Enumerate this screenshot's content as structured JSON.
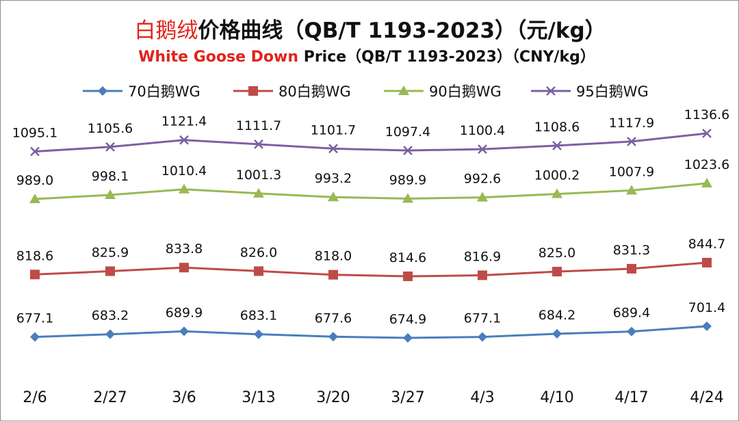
{
  "chart_data": {
    "type": "line",
    "title": {
      "cn_red": "白鹅绒",
      "cn_rest": "价格曲线（QB/T 1193-2023）（元/kg）",
      "en_red": "White Goose Down",
      "en_rest": " Price（QB/T 1193-2023）（CNY/kg）"
    },
    "categories": [
      "2/6",
      "2/27",
      "3/6",
      "3/13",
      "3/20",
      "3/27",
      "4/3",
      "4/10",
      "4/17",
      "4/24"
    ],
    "grid": false,
    "legend_position": "top",
    "series": [
      {
        "name": "70白鹅WG",
        "color": "#4a7ebb",
        "marker": "diamond",
        "values": [
          677.1,
          683.2,
          689.9,
          683.1,
          677.6,
          674.9,
          677.1,
          684.2,
          689.4,
          701.4
        ],
        "labels": [
          "677.1",
          "683.2",
          "689.9",
          "683.1",
          "677.6",
          "674.9",
          "677.1",
          "684.2",
          "689.4",
          "701.4"
        ]
      },
      {
        "name": "80白鹅WG",
        "color": "#be4b48",
        "marker": "square",
        "values": [
          818.6,
          825.9,
          833.8,
          826.0,
          818.0,
          814.6,
          816.9,
          825.0,
          831.3,
          844.7
        ],
        "labels": [
          "818.6",
          "825.9",
          "833.8",
          "826.0",
          "818.0",
          "814.6",
          "816.9",
          "825.0",
          "831.3",
          "844.7"
        ]
      },
      {
        "name": "90白鹅WG",
        "color": "#98b954",
        "marker": "triangle",
        "values": [
          989.0,
          998.1,
          1010.4,
          1001.3,
          993.2,
          989.9,
          992.6,
          1000.2,
          1007.9,
          1023.6
        ],
        "labels": [
          "989.0",
          "998.1",
          "1010.4",
          "1001.3",
          "993.2",
          "989.9",
          "992.6",
          "1000.2",
          "1007.9",
          "1023.6"
        ]
      },
      {
        "name": "95白鹅WG",
        "color": "#7d60a0",
        "marker": "x",
        "values": [
          1095.1,
          1105.6,
          1121.4,
          1111.7,
          1101.7,
          1097.4,
          1100.4,
          1108.6,
          1117.9,
          1136.6
        ],
        "labels": [
          "1095.1",
          "1105.6",
          "1121.4",
          "1111.7",
          "1101.7",
          "1097.4",
          "1100.4",
          "1108.6",
          "1117.9",
          "1136.6"
        ]
      }
    ]
  }
}
